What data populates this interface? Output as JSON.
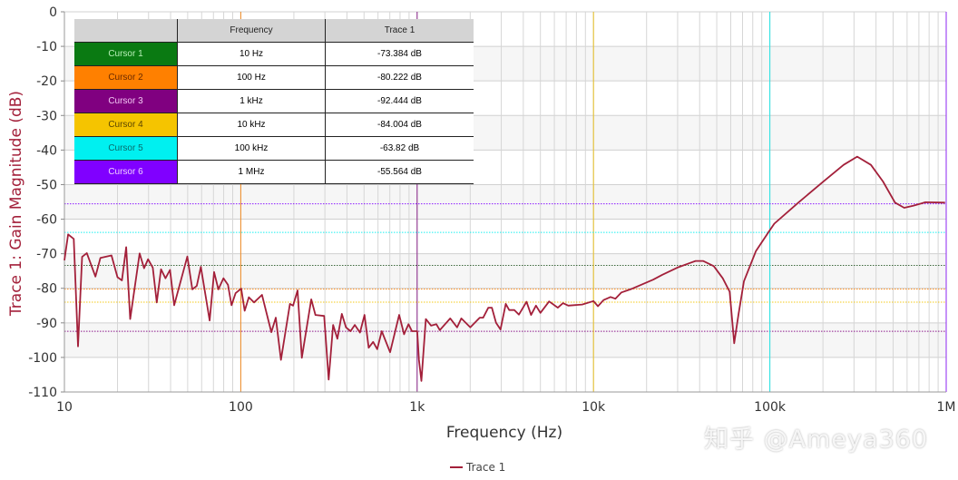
{
  "chart_data": {
    "type": "line",
    "xlabel": "Frequency (Hz)",
    "ylabel": "Trace 1: Gain Magnitude (dB)",
    "xscale": "log",
    "xlim": [
      10,
      1000000
    ],
    "ylim": [
      -110,
      0
    ],
    "xticks": [
      {
        "v": 10,
        "label": "10"
      },
      {
        "v": 100,
        "label": "100"
      },
      {
        "v": 1000,
        "label": "1k"
      },
      {
        "v": 10000,
        "label": "10k"
      },
      {
        "v": 100000,
        "label": "100k"
      },
      {
        "v": 1000000,
        "label": "1M"
      }
    ],
    "yticks": [
      0,
      -10,
      -20,
      -30,
      -40,
      -50,
      -60,
      -70,
      -80,
      -90,
      -100,
      -110
    ],
    "grid": true,
    "legend_position": "bottom-center",
    "series": [
      {
        "name": "Trace 1",
        "color": "#a3203a",
        "x": [
          10,
          10.5,
          11.3,
          11.95,
          12.6,
          13.4,
          15,
          16,
          18.5,
          20,
          21.2,
          22.4,
          23.6,
          26.7,
          28.3,
          29.8,
          31.7,
          33.4,
          35.3,
          37.4,
          39.7,
          41.9,
          49.8,
          53.1,
          56.3,
          59.4,
          66.6,
          70.6,
          74.6,
          79.8,
          84.6,
          88.6,
          93.5,
          100.6,
          105.2,
          111.1,
          118.9,
          132,
          149,
          158,
          169,
          190,
          198,
          210,
          222,
          251,
          265,
          297,
          315,
          334,
          353,
          374,
          395,
          419,
          443,
          474,
          503,
          531,
          563,
          594,
          630,
          703,
          791,
          843,
          894,
          935,
          1001,
          1024,
          1057,
          1121,
          1200,
          1285,
          1344,
          1540,
          1686,
          1781,
          2003,
          2264,
          2368,
          2535,
          2653,
          2802,
          2971,
          3181,
          3329,
          3562,
          3778,
          4174,
          4427,
          4717,
          5003,
          5604,
          6277,
          6720,
          7192,
          8619,
          10000,
          10600,
          11400,
          12500,
          13300,
          14400,
          16200,
          18600,
          21800,
          24500,
          29900,
          37900,
          41800,
          48100,
          54100,
          59200,
          62800,
          66400,
          71300,
          83400,
          99600,
          106000,
          145000,
          199000,
          262000,
          313000,
          374000,
          438000,
          513000,
          578000,
          650000,
          762000,
          985000
        ],
        "y": [
          -71.9,
          -64.4,
          -65.7,
          -96.8,
          -70.9,
          -69.8,
          -76.6,
          -71.2,
          -70.5,
          -76.8,
          -77.7,
          -68.1,
          -88.9,
          -69.9,
          -74.2,
          -71.6,
          -74,
          -84.1,
          -74.5,
          -77.1,
          -74.7,
          -84.9,
          -70.8,
          -80.3,
          -79.3,
          -73.8,
          -89.3,
          -75.3,
          -80.3,
          -77.1,
          -79,
          -84.9,
          -81.4,
          -80.1,
          -86.5,
          -82.6,
          -84.1,
          -81.9,
          -92.7,
          -88.5,
          -100.7,
          -84.5,
          -85,
          -80.6,
          -100.1,
          -83.2,
          -87.7,
          -88,
          -106.4,
          -90.6,
          -94.6,
          -87.4,
          -91.3,
          -92.4,
          -90.6,
          -92.8,
          -87.7,
          -97.2,
          -95.5,
          -97.6,
          -92.4,
          -98.5,
          -87.7,
          -93.3,
          -90.4,
          -92.4,
          -92.4,
          -100.7,
          -106.8,
          -88.9,
          -90.8,
          -90.4,
          -92.1,
          -88.7,
          -91.3,
          -88.7,
          -91.3,
          -88.5,
          -88.5,
          -85.6,
          -85.6,
          -90,
          -91.9,
          -84.5,
          -86.3,
          -86.3,
          -87.6,
          -83.9,
          -87.7,
          -85,
          -87.1,
          -83.8,
          -85.6,
          -84.3,
          -85,
          -84.7,
          -83.7,
          -85.2,
          -83.4,
          -82.5,
          -83,
          -81.2,
          -80.3,
          -79,
          -77.5,
          -76.1,
          -74,
          -72.1,
          -72.1,
          -73.6,
          -77.1,
          -81,
          -95.9,
          -87.6,
          -78,
          -69.2,
          -63.3,
          -61.3,
          -55.2,
          -49.3,
          -44.3,
          -41.9,
          -44.3,
          -49.1,
          -55.2,
          -56.7,
          -56.1,
          -55.1,
          -55.2
        ]
      }
    ],
    "cursors": [
      {
        "label": "Cursor 1",
        "frequency_label": "10 Hz",
        "value_label": "-73.384 dB",
        "frequency": 10,
        "value": -73.384,
        "color": "#0a7a12",
        "text_color": "#b8f0b8"
      },
      {
        "label": "Cursor 2",
        "frequency_label": "100 Hz",
        "value_label": "-80.222 dB",
        "frequency": 100,
        "value": -80.222,
        "color": "#ff8000",
        "text_color": "#6a2a00"
      },
      {
        "label": "Cursor 3",
        "frequency_label": "1 kHz",
        "value_label": "-92.444 dB",
        "frequency": 1000,
        "value": -92.444,
        "color": "#800080",
        "text_color": "#f3c8f3"
      },
      {
        "label": "Cursor 4",
        "frequency_label": "10 kHz",
        "value_label": "-84.004 dB",
        "frequency": 10000,
        "value": -84.004,
        "color": "#f5c400",
        "text_color": "#5a4500"
      },
      {
        "label": "Cursor 5",
        "frequency_label": "100 kHz",
        "value_label": "-63.82 dB",
        "frequency": 100000,
        "value": -63.82,
        "color": "#00f0f0",
        "text_color": "#0a6a6a"
      },
      {
        "label": "Cursor 6",
        "frequency_label": "1 MHz",
        "value_label": "-55.564 dB",
        "frequency": 1000000,
        "value": -55.564,
        "color": "#8000ff",
        "text_color": "#f0d0ff"
      }
    ]
  },
  "table": {
    "headers": [
      "",
      "Frequency",
      "Trace 1"
    ]
  },
  "legend": {
    "label": "Trace 1"
  },
  "watermark": "知乎 @Ameya360"
}
